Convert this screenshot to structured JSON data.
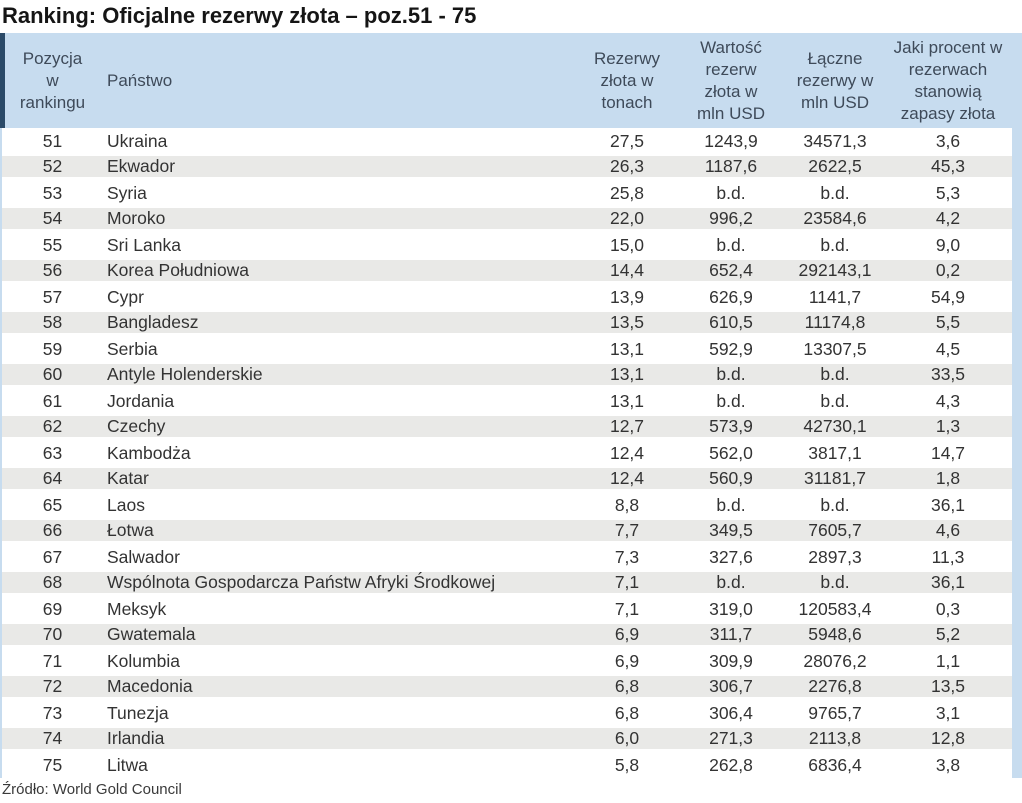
{
  "title": "Ranking: Oficjalne rezerwy złota – poz.51 - 75",
  "source": "Źródło: World Gold Council",
  "colors": {
    "header_bg": "#c7dcef",
    "header_text": "#3e4a59",
    "alt_row_bg": "#e9e9e7",
    "navy_accent": "#2b4a68",
    "body_text": "#333333"
  },
  "chart_data": {
    "type": "table",
    "title": "Ranking: Oficjalne rezerwy złota – poz.51 - 75",
    "source": "Źródło: World Gold Council",
    "missing_value_marker": "b.d.",
    "columns": [
      "Pozycja w rankingu",
      "Państwo",
      "Rezerwy złota w tonach",
      "Wartość rezerw złota w mln USD",
      "Łączne rezerwy w mln USD",
      "Jaki procent w rezerwach stanowią zapasy złota"
    ],
    "rows": [
      [
        "51",
        "Ukraina",
        "27,5",
        "1243,9",
        "34571,3",
        "3,6"
      ],
      [
        "52",
        "Ekwador",
        "26,3",
        "1187,6",
        "2622,5",
        "45,3"
      ],
      [
        "53",
        "Syria",
        "25,8",
        "b.d.",
        "b.d.",
        "5,3"
      ],
      [
        "54",
        "Moroko",
        "22,0",
        "996,2",
        "23584,6",
        "4,2"
      ],
      [
        "55",
        "Sri Lanka",
        "15,0",
        "b.d.",
        "b.d.",
        "9,0"
      ],
      [
        "56",
        "Korea Południowa",
        "14,4",
        "652,4",
        "292143,1",
        "0,2"
      ],
      [
        "57",
        "Cypr",
        "13,9",
        "626,9",
        "1141,7",
        "54,9"
      ],
      [
        "58",
        "Bangladesz",
        "13,5",
        "610,5",
        "11174,8",
        "5,5"
      ],
      [
        "59",
        "Serbia",
        "13,1",
        "592,9",
        "13307,5",
        "4,5"
      ],
      [
        "60",
        "Antyle Holenderskie",
        "13,1",
        "b.d.",
        "b.d.",
        "33,5"
      ],
      [
        "61",
        "Jordania",
        "13,1",
        "b.d.",
        "b.d.",
        "4,3"
      ],
      [
        "62",
        "Czechy",
        "12,7",
        "573,9",
        "42730,1",
        "1,3"
      ],
      [
        "63",
        "Kambodża",
        "12,4",
        "562,0",
        "3817,1",
        "14,7"
      ],
      [
        "64",
        "Katar",
        "12,4",
        "560,9",
        "31181,7",
        "1,8"
      ],
      [
        "65",
        "Laos",
        "8,8",
        "b.d.",
        "b.d.",
        "36,1"
      ],
      [
        "66",
        "Łotwa",
        "7,7",
        "349,5",
        "7605,7",
        "4,6"
      ],
      [
        "67",
        "Salwador",
        "7,3",
        "327,6",
        "2897,3",
        "11,3"
      ],
      [
        "68",
        "Wspólnota Gospodarcza Państw Afryki Środkowej",
        "7,1",
        "b.d.",
        "b.d.",
        "36,1"
      ],
      [
        "69",
        "Meksyk",
        "7,1",
        "319,0",
        "120583,4",
        "0,3"
      ],
      [
        "70",
        "Gwatemala",
        "6,9",
        "311,7",
        "5948,6",
        "5,2"
      ],
      [
        "71",
        "Kolumbia",
        "6,9",
        "309,9",
        "28076,2",
        "1,1"
      ],
      [
        "72",
        "Macedonia",
        "6,8",
        "306,7",
        "2276,8",
        "13,5"
      ],
      [
        "73",
        "Tunezja",
        "6,8",
        "306,4",
        "9765,7",
        "3,1"
      ],
      [
        "74",
        "Irlandia",
        "6,0",
        "271,3",
        "2113,8",
        "12,8"
      ],
      [
        "75",
        "Litwa",
        "5,8",
        "262,8",
        "6836,4",
        "3,8"
      ]
    ]
  }
}
